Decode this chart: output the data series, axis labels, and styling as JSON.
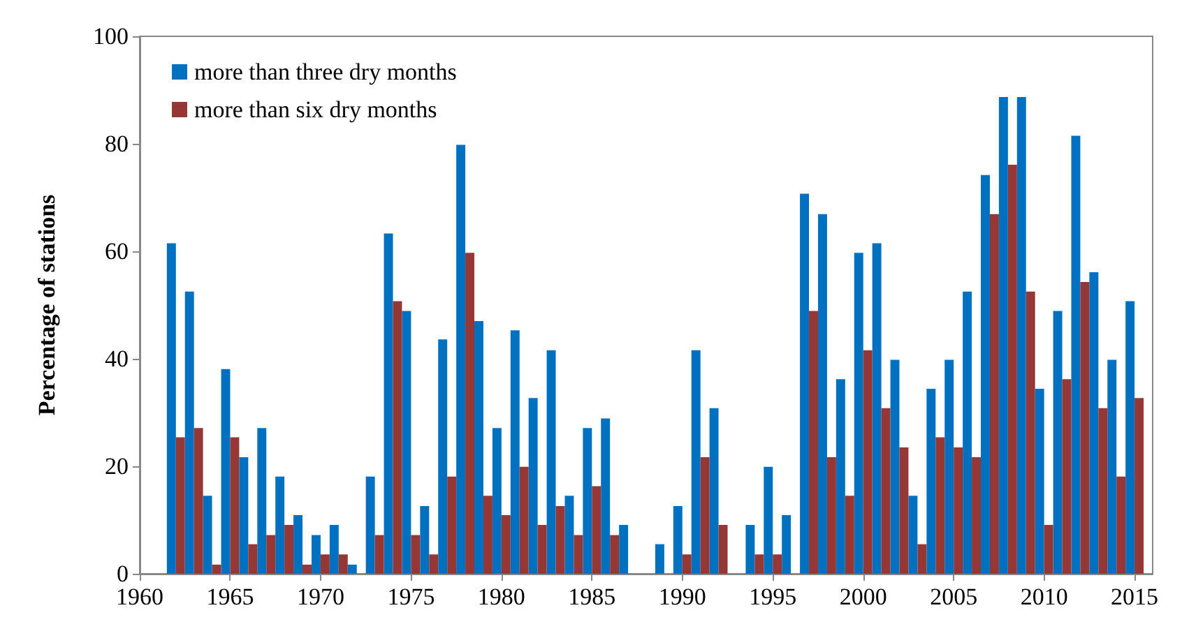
{
  "chart_data": {
    "type": "bar",
    "ylabel": "Percentage of stations",
    "x": [
      1962,
      1963,
      1964,
      1965,
      1966,
      1967,
      1968,
      1969,
      1970,
      1971,
      1972,
      1973,
      1974,
      1975,
      1976,
      1977,
      1978,
      1979,
      1980,
      1981,
      1982,
      1983,
      1984,
      1985,
      1986,
      1987,
      1988,
      1989,
      1990,
      1991,
      1992,
      1993,
      1994,
      1995,
      1996,
      1997,
      1998,
      1999,
      2000,
      2001,
      2002,
      2003,
      2004,
      2005,
      2006,
      2007,
      2008,
      2009,
      2010,
      2011,
      2012,
      2013,
      2014,
      2015
    ],
    "series": [
      {
        "name": "more than three dry months",
        "color": "#0070c0",
        "values": [
          61.5,
          52.5,
          14.5,
          38.1,
          21.7,
          27.1,
          18.1,
          10.9,
          7.2,
          9.1,
          1.7,
          18.1,
          63.3,
          48.9,
          12.6,
          43.6,
          79.8,
          47,
          27.1,
          45.3,
          32.7,
          41.6,
          14.5,
          27.1,
          28.9,
          9.1,
          0,
          5.5,
          12.6,
          41.6,
          30.8,
          0,
          9.1,
          19.9,
          10.9,
          70.7,
          66.9,
          36.2,
          59.7,
          61.5,
          39.8,
          14.5,
          34.4,
          39.8,
          52.5,
          74.2,
          88.7,
          88.7,
          34.4,
          48.9,
          81.5,
          56.1,
          39.8,
          50.7
        ]
      },
      {
        "name": "more than six dry months",
        "color": "#953735",
        "values": [
          25.4,
          27.1,
          1.7,
          25.4,
          5.5,
          7.2,
          9.1,
          1.7,
          3.6,
          3.6,
          0,
          7.2,
          50.7,
          7.2,
          3.6,
          18.1,
          59.7,
          14.5,
          10.9,
          19.9,
          9.1,
          12.6,
          7.2,
          16.3,
          7.2,
          0,
          0,
          0,
          3.6,
          21.7,
          9.1,
          0,
          3.6,
          3.6,
          0,
          48.9,
          21.7,
          14.5,
          41.6,
          30.8,
          23.5,
          5.5,
          25.4,
          23.5,
          21.7,
          66.9,
          76.1,
          52.5,
          9.1,
          36.2,
          54.3,
          30.8,
          18.1,
          32.7
        ]
      }
    ],
    "xlim": [
      1960,
      2016
    ],
    "xticks": [
      1960,
      1965,
      1970,
      1975,
      1980,
      1985,
      1990,
      1995,
      2000,
      2005,
      2010,
      2015
    ],
    "ylim": [
      0,
      100
    ],
    "yticks": [
      0,
      20,
      40,
      60,
      80,
      100
    ],
    "grid": false,
    "legend": "top left"
  }
}
